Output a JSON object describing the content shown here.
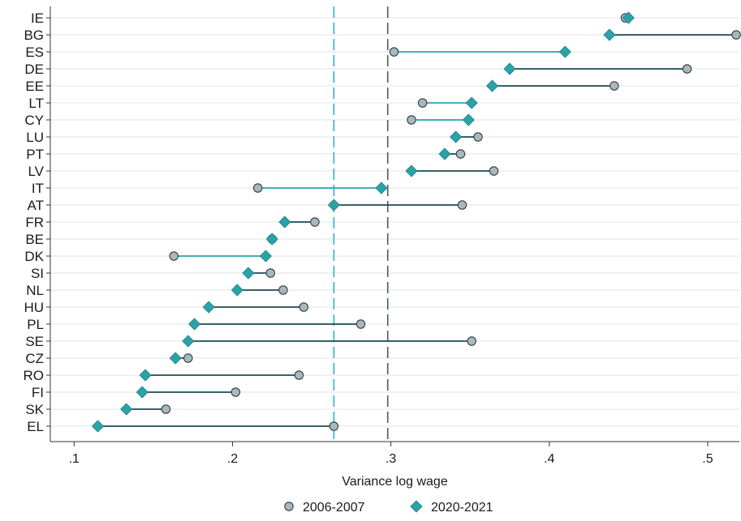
{
  "chart_data": {
    "type": "dumbbell",
    "xlabel": "Variance log wage",
    "xlim": [
      0.085,
      0.52
    ],
    "x_ticks": [
      ".1",
      ".2",
      ".3",
      ".4",
      ".5"
    ],
    "x_tick_values": [
      0.1,
      0.2,
      0.3,
      0.4,
      0.5
    ],
    "grid": "horizontal",
    "legend_position": "bottom",
    "reference_lines": [
      {
        "x": 0.264,
        "style": "dashed",
        "color": "#2bb3c9"
      },
      {
        "x": 0.298,
        "style": "dashed",
        "color": "#4d5a5e"
      }
    ],
    "categories": [
      "IE",
      "BG",
      "ES",
      "DE",
      "EE",
      "LT",
      "CY",
      "LU",
      "PT",
      "LV",
      "IT",
      "AT",
      "FR",
      "BE",
      "DK",
      "SI",
      "NL",
      "HU",
      "PL",
      "SE",
      "CZ",
      "RO",
      "FI",
      "SK",
      "EL"
    ],
    "series": [
      {
        "name": "2006-2007",
        "marker": "circle",
        "color": "#a9b8bd",
        "values": [
          0.448,
          0.518,
          0.302,
          0.487,
          0.441,
          0.32,
          0.313,
          0.355,
          0.344,
          0.365,
          0.216,
          0.345,
          0.252,
          0.225,
          0.163,
          0.224,
          0.232,
          0.245,
          0.281,
          0.351,
          0.172,
          0.242,
          0.202,
          0.158,
          0.264
        ]
      },
      {
        "name": "2020-2021",
        "marker": "diamond",
        "color": "#2aa3a8",
        "values": [
          0.45,
          0.438,
          0.41,
          0.375,
          0.364,
          0.351,
          0.349,
          0.341,
          0.334,
          0.313,
          0.294,
          0.264,
          0.233,
          0.225,
          0.221,
          0.21,
          0.203,
          0.185,
          0.176,
          0.172,
          0.164,
          0.145,
          0.143,
          0.133,
          0.115
        ]
      }
    ],
    "connector_colors": {
      "increase": "#2aa3b5",
      "decrease": "#1c4a52"
    }
  }
}
